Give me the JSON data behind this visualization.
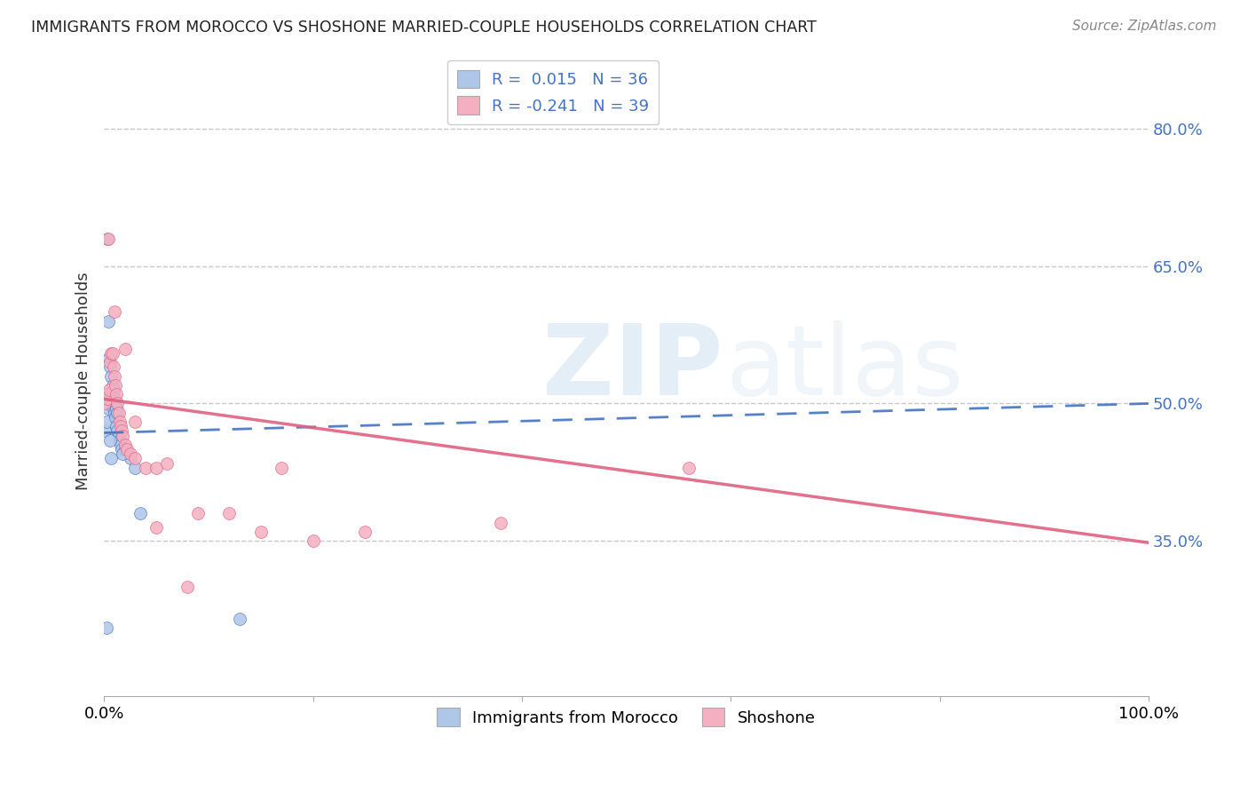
{
  "title": "IMMIGRANTS FROM MOROCCO VS SHOSHONE MARRIED-COUPLE HOUSEHOLDS CORRELATION CHART",
  "source": "Source: ZipAtlas.com",
  "ylabel": "Married-couple Households",
  "xlim": [
    0.0,
    1.0
  ],
  "ylim": [
    0.18,
    0.87
  ],
  "yticks": [
    0.35,
    0.5,
    0.65,
    0.8
  ],
  "ytick_labels": [
    "35.0%",
    "50.0%",
    "65.0%",
    "80.0%"
  ],
  "xticks": [
    0.0,
    0.2,
    0.4,
    0.6,
    0.8,
    1.0
  ],
  "xtick_labels": [
    "0.0%",
    "",
    "",
    "",
    "",
    "100.0%"
  ],
  "morocco_color": "#aec6e8",
  "shoshone_color": "#f4afc0",
  "morocco_line_color": "#4472c4",
  "shoshone_line_color": "#e06080",
  "morocco_R": 0.015,
  "morocco_N": 36,
  "shoshone_R": -0.241,
  "shoshone_N": 39,
  "background_color": "#ffffff",
  "grid_color": "#c8c8c8",
  "morocco_trend_x": [
    0.0,
    1.0
  ],
  "morocco_trend_y": [
    0.468,
    0.5
  ],
  "shoshone_trend_x": [
    0.0,
    1.0
  ],
  "shoshone_trend_y": [
    0.505,
    0.348
  ],
  "morocco_x": [
    0.001,
    0.002,
    0.004,
    0.005,
    0.006,
    0.007,
    0.008,
    0.009,
    0.01,
    0.011,
    0.012,
    0.013,
    0.014,
    0.015,
    0.016,
    0.017,
    0.005,
    0.006,
    0.007,
    0.008,
    0.009,
    0.01,
    0.011,
    0.012,
    0.013,
    0.02,
    0.025,
    0.03,
    0.035,
    0.018,
    0.003,
    0.004,
    0.006,
    0.007,
    0.13,
    0.002
  ],
  "morocco_y": [
    0.47,
    0.48,
    0.495,
    0.51,
    0.51,
    0.505,
    0.5,
    0.495,
    0.49,
    0.485,
    0.475,
    0.47,
    0.465,
    0.46,
    0.455,
    0.45,
    0.55,
    0.54,
    0.53,
    0.52,
    0.515,
    0.505,
    0.5,
    0.495,
    0.49,
    0.45,
    0.44,
    0.43,
    0.38,
    0.445,
    0.68,
    0.59,
    0.46,
    0.44,
    0.265,
    0.255
  ],
  "shoshone_x": [
    0.001,
    0.002,
    0.003,
    0.004,
    0.005,
    0.006,
    0.007,
    0.008,
    0.009,
    0.01,
    0.011,
    0.012,
    0.013,
    0.014,
    0.015,
    0.016,
    0.017,
    0.018,
    0.02,
    0.022,
    0.025,
    0.03,
    0.04,
    0.05,
    0.06,
    0.09,
    0.12,
    0.15,
    0.17,
    0.2,
    0.25,
    0.38,
    0.56,
    0.004,
    0.01,
    0.02,
    0.03,
    0.05,
    0.08
  ],
  "shoshone_y": [
    0.5,
    0.51,
    0.505,
    0.51,
    0.515,
    0.545,
    0.555,
    0.555,
    0.54,
    0.53,
    0.52,
    0.51,
    0.5,
    0.49,
    0.48,
    0.475,
    0.47,
    0.465,
    0.455,
    0.45,
    0.445,
    0.44,
    0.43,
    0.43,
    0.435,
    0.38,
    0.38,
    0.36,
    0.43,
    0.35,
    0.36,
    0.37,
    0.43,
    0.68,
    0.6,
    0.56,
    0.48,
    0.365,
    0.3
  ]
}
